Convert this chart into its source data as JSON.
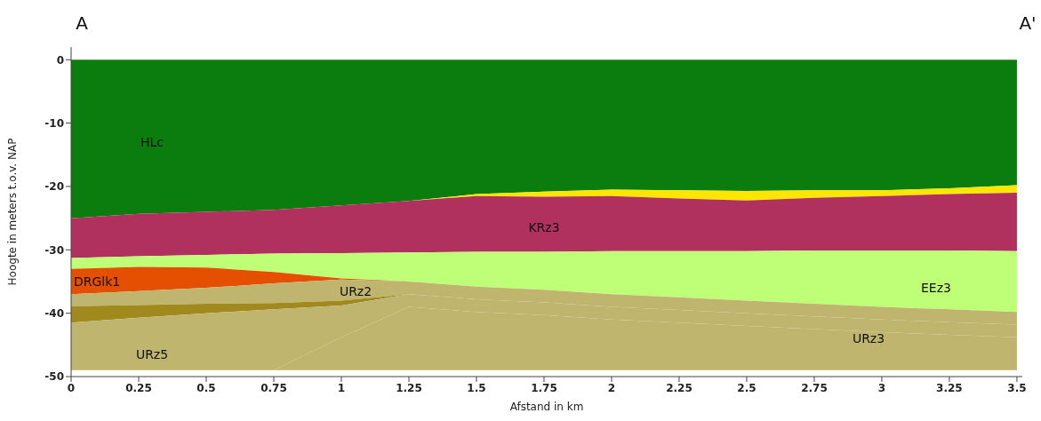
{
  "chart_data": {
    "type": "area",
    "stacked": true,
    "xlabel": "Afstand in km",
    "ylabel": "Hoogte in meters t.o.v. NAP",
    "x": [
      0,
      0.25,
      0.5,
      0.75,
      1,
      1.25,
      1.5,
      1.75,
      2,
      2.25,
      2.5,
      2.75,
      3,
      3.25,
      3.5
    ],
    "xlim": [
      0,
      3.52
    ],
    "xticks": [
      0,
      0.25,
      0.5,
      0.75,
      1,
      1.25,
      1.5,
      1.75,
      2,
      2.25,
      2.5,
      2.75,
      3,
      3.25,
      3.5
    ],
    "ylim": [
      -50,
      2
    ],
    "yticks": [
      0,
      -10,
      -20,
      -30,
      -40,
      -50
    ],
    "grid": false,
    "legend": false,
    "series": [
      {
        "color": "#0b7d0e",
        "values": [
          -25,
          -24.3,
          -24,
          -23.7,
          -23,
          -22.3,
          -21.2,
          -20.8,
          -20.5,
          -20.6,
          -20.7,
          -20.6,
          -20.6,
          -20.3,
          -19.8
        ]
      },
      {
        "color": "#ffe600",
        "values": [
          null,
          null,
          null,
          null,
          null,
          0,
          -0.3,
          -0.8,
          -1,
          -1.3,
          -1.5,
          -1.2,
          -0.9,
          -0.9,
          -1.2
        ]
      },
      {
        "color": "#b0305e",
        "values": [
          -6.3,
          -6.7,
          -6.8,
          -6.9,
          -7.5,
          -8.1,
          -8.8,
          -8.7,
          -8.7,
          -8.3,
          -8,
          -8.3,
          -8.6,
          -8.9,
          -9.2
        ]
      },
      {
        "color": "#bfff78",
        "values": [
          -1.7,
          -1.7,
          -2,
          -2.9,
          -4,
          -4.6,
          -5.5,
          -6,
          -6.8,
          -7.3,
          -7.8,
          -8.4,
          -8.9,
          -9.3,
          -9.6
        ]
      },
      {
        "color": "#e55000",
        "values": [
          -4,
          -3.8,
          -3.2,
          -1.8,
          -0.2,
          0,
          null,
          null,
          null,
          null,
          null,
          null,
          null,
          null,
          null
        ]
      },
      {
        "color": "#bfb56e",
        "values": [
          -1.9,
          -2.2,
          -2.5,
          -3.1,
          -3.3,
          -2,
          -2,
          -2,
          -2,
          -2,
          -2,
          -2,
          -2,
          -2,
          -2
        ]
      },
      {
        "color": "#a08a1e",
        "values": [
          -2.6,
          -2,
          -1.5,
          -1,
          -0.8,
          0,
          null,
          null,
          null,
          null,
          null,
          null,
          null,
          null,
          null
        ]
      },
      {
        "color": "#bfb56e",
        "values": [
          -7.5,
          -8.3,
          -9,
          -9.6,
          -5,
          -2,
          -2,
          -2,
          -2,
          -2,
          -2,
          -2,
          -2,
          -2,
          -2
        ]
      },
      {
        "color": "#bfb56e",
        "values": [
          null,
          null,
          null,
          0,
          -5.2,
          -10,
          -9.2,
          -8.7,
          -8,
          -7.5,
          -7,
          -6.5,
          -6,
          -5.6,
          -5.2
        ]
      }
    ],
    "annotations": [
      "A",
      "A'",
      "HLc",
      "KRz3",
      "DRGlk1",
      "URz2",
      "EEz3",
      "URz5",
      "URz3"
    ]
  }
}
